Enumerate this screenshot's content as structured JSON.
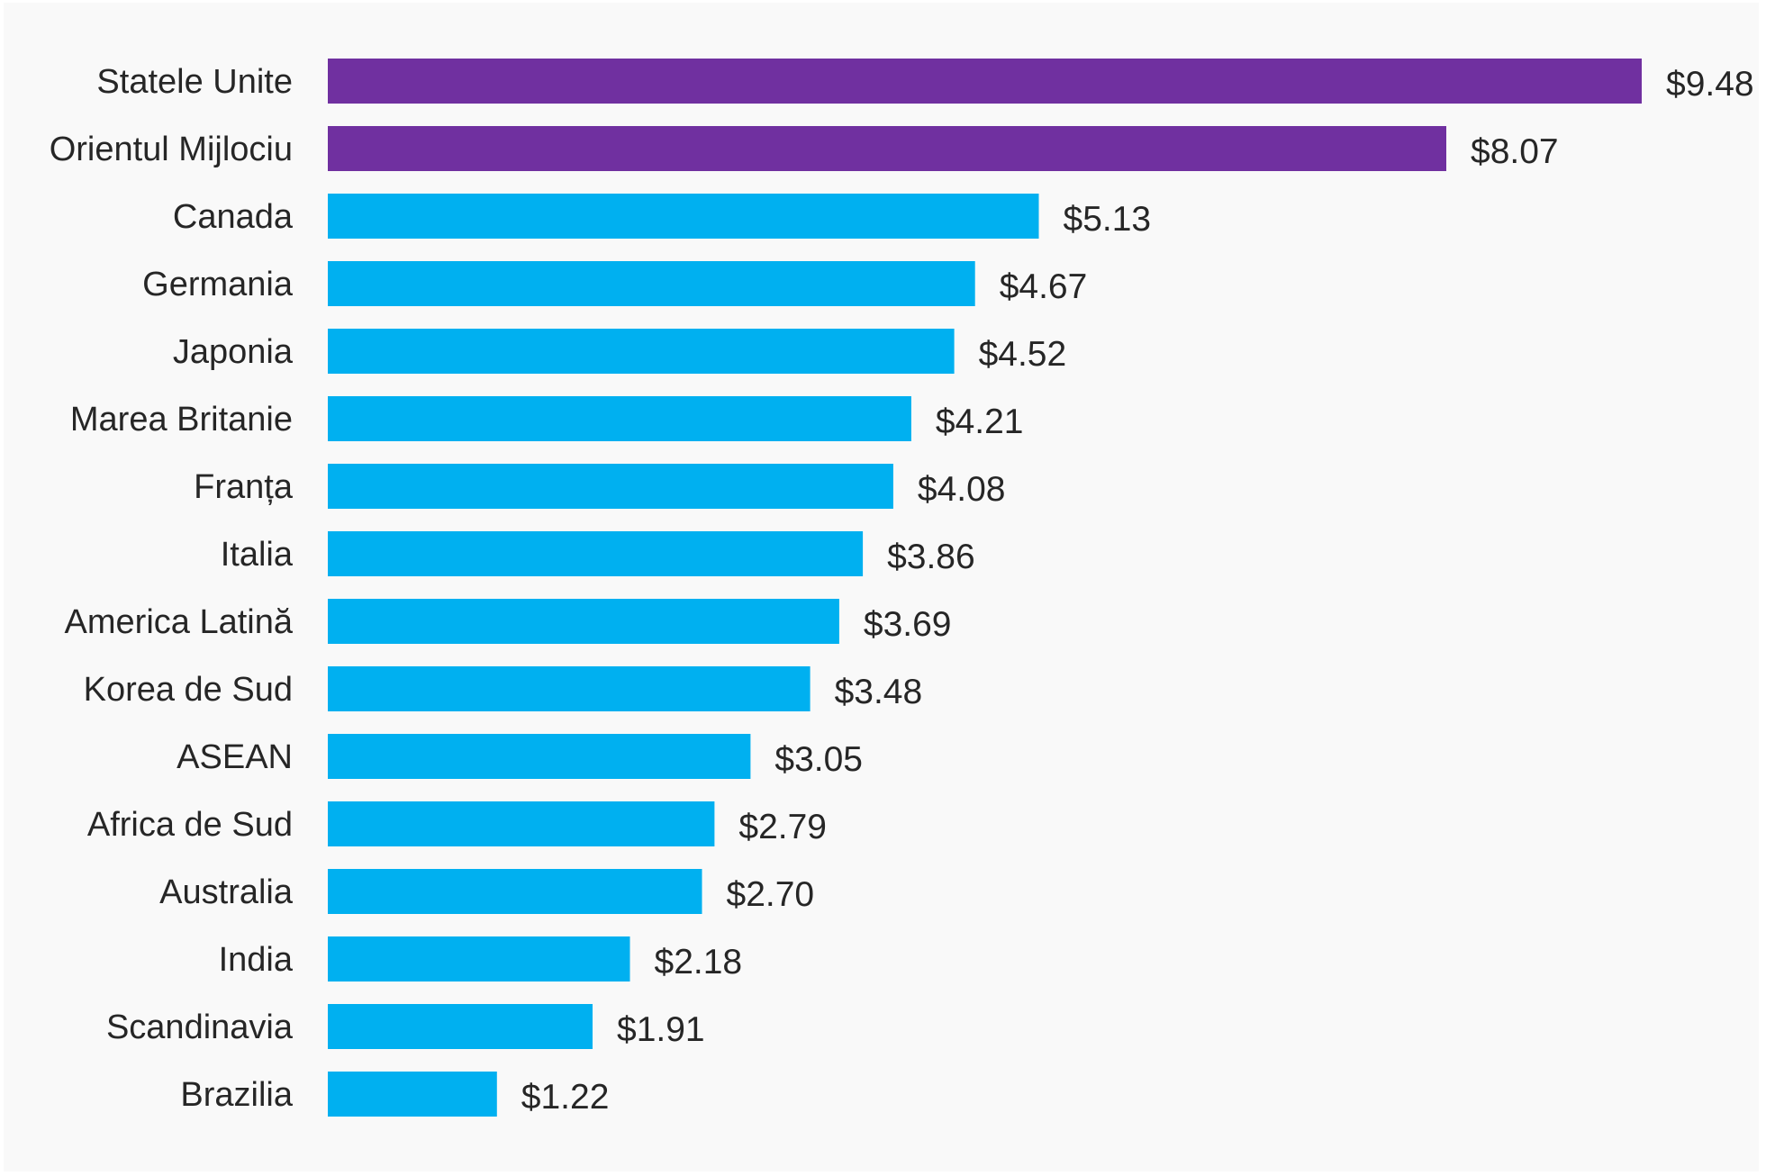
{
  "chart_data": {
    "type": "bar",
    "orientation": "horizontal",
    "title": "",
    "xlabel": "",
    "ylabel": "",
    "value_prefix": "$",
    "xlim": [
      0,
      9.48
    ],
    "grid": false,
    "legend": "none",
    "colors": {
      "highlight": "#7030A0",
      "default": "#00B0F0",
      "text": "#262626",
      "background": "#F9F9F9"
    },
    "categories": [
      "Statele Unite",
      "Orientul Mijlociu",
      "Canada",
      "Germania",
      "Japonia",
      "Marea Britanie",
      "Franța",
      "Italia",
      "America Latină",
      "Korea de Sud",
      "ASEAN",
      "Africa de Sud",
      "Australia",
      "India",
      "Scandinavia",
      "Brazilia"
    ],
    "values": [
      9.48,
      8.07,
      5.13,
      4.67,
      4.52,
      4.21,
      4.08,
      3.86,
      3.69,
      3.48,
      3.05,
      2.79,
      2.7,
      2.18,
      1.91,
      1.22
    ],
    "value_labels": [
      "$9.48",
      "$8.07",
      "$5.13",
      "$4.67",
      "$4.52",
      "$4.21",
      "$4.08",
      "$3.86",
      "$3.69",
      "$3.48",
      "$3.05",
      "$2.79",
      "$2.70",
      "$2.18",
      "$1.91",
      "$1.22"
    ],
    "highlighted": [
      true,
      true,
      false,
      false,
      false,
      false,
      false,
      false,
      false,
      false,
      false,
      false,
      false,
      false,
      false,
      false
    ]
  }
}
